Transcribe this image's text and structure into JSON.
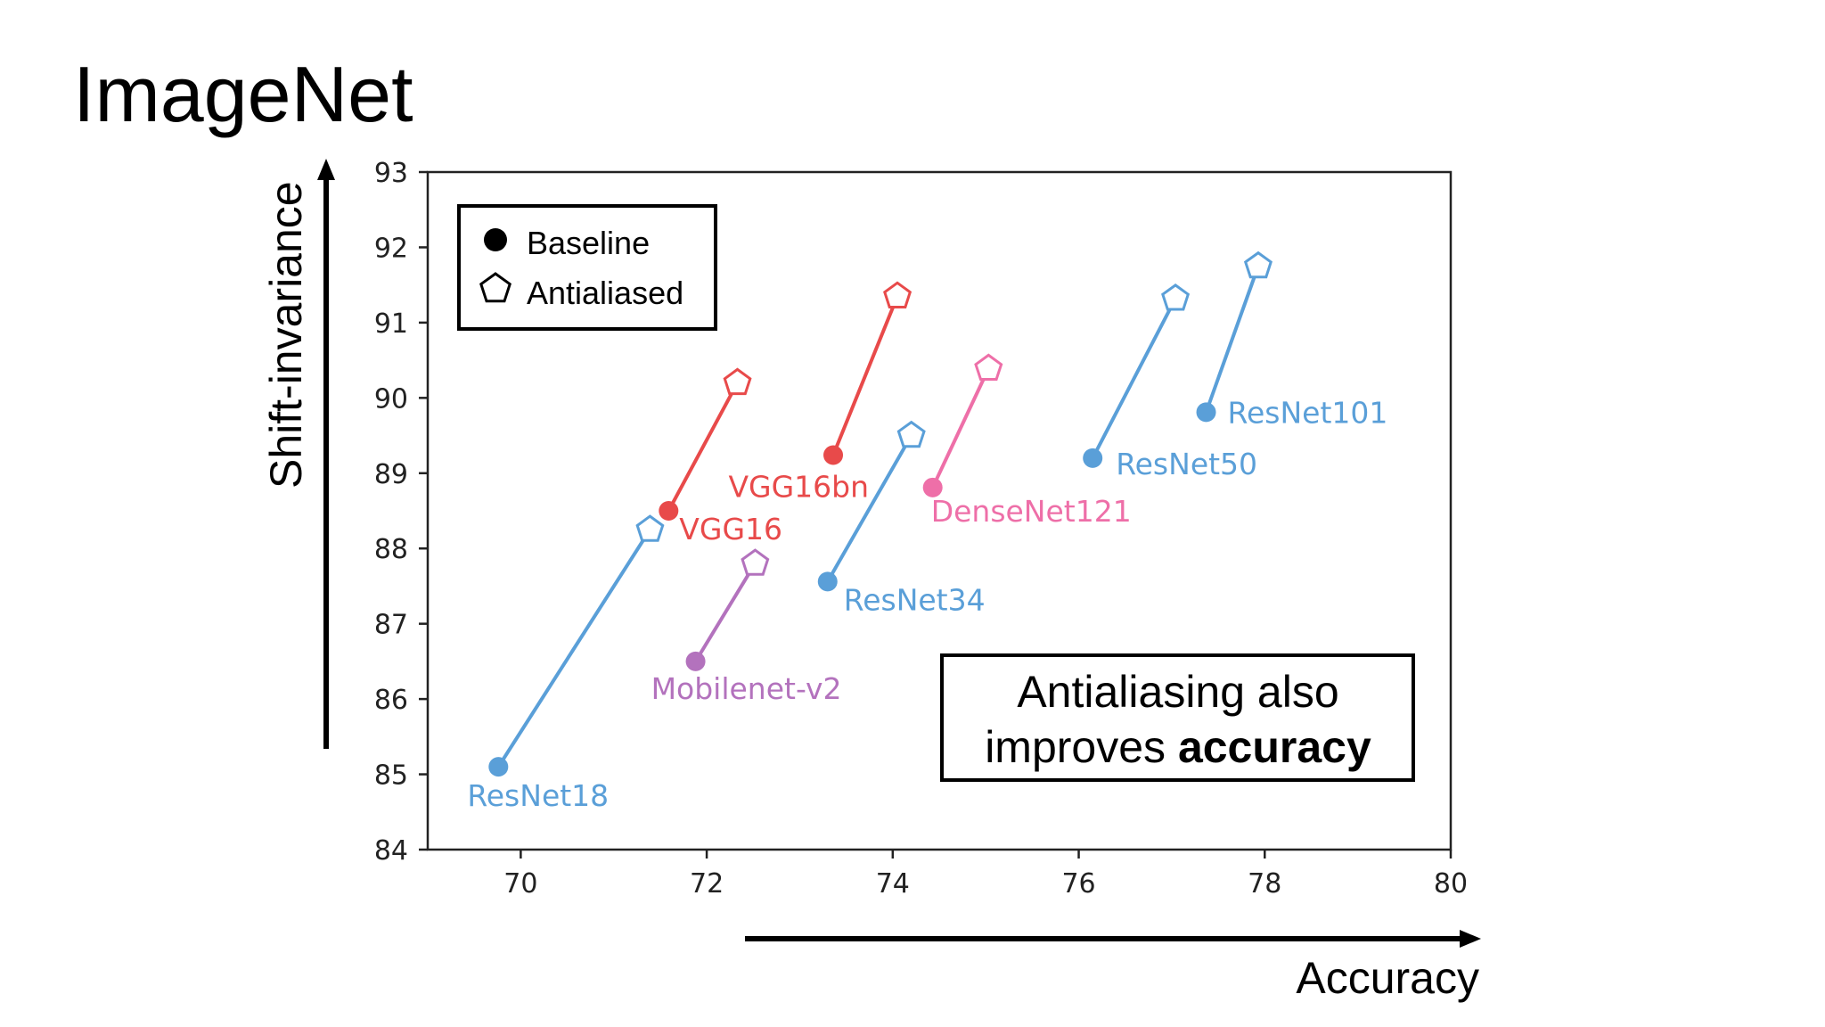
{
  "slide": {
    "title": "ImageNet",
    "note_line1": "Antialiasing also",
    "note_line2_prefix": "improves ",
    "note_line2_bold": "accuracy"
  },
  "chart_data": {
    "type": "scatter",
    "title": "",
    "xlabel": "Accuracy",
    "ylabel": "Shift-invariance",
    "xlim": [
      69,
      80
    ],
    "ylim": [
      84,
      93
    ],
    "xticks": [
      70,
      72,
      74,
      76,
      78,
      80
    ],
    "yticks": [
      84,
      85,
      86,
      87,
      88,
      89,
      90,
      91,
      92,
      93
    ],
    "grid": false,
    "legend": {
      "placement": "top-left",
      "entries": [
        {
          "label": "Baseline",
          "marker": "circle"
        },
        {
          "label": "Antialiased",
          "marker": "pentagon"
        }
      ]
    },
    "series": [
      {
        "name": "ResNet18",
        "color": "#5a9fd8",
        "baseline": {
          "x": 69.76,
          "y": 85.1
        },
        "antialiased": {
          "x": 71.39,
          "y": 88.25
        }
      },
      {
        "name": "VGG16",
        "color": "#e84a4a",
        "baseline": {
          "x": 71.59,
          "y": 88.5
        },
        "antialiased": {
          "x": 72.33,
          "y": 90.2
        }
      },
      {
        "name": "VGG16bn",
        "color": "#e84a4a",
        "baseline": {
          "x": 73.36,
          "y": 89.24
        },
        "antialiased": {
          "x": 74.05,
          "y": 91.35
        }
      },
      {
        "name": "Mobilenet-v2",
        "color": "#b372bd",
        "baseline": {
          "x": 71.88,
          "y": 86.5
        },
        "antialiased": {
          "x": 72.52,
          "y": 87.8
        }
      },
      {
        "name": "ResNet34",
        "color": "#5a9fd8",
        "baseline": {
          "x": 73.3,
          "y": 87.56
        },
        "antialiased": {
          "x": 74.2,
          "y": 89.5
        }
      },
      {
        "name": "DenseNet121",
        "color": "#ee6fa8",
        "baseline": {
          "x": 74.43,
          "y": 88.81
        },
        "antialiased": {
          "x": 75.03,
          "y": 90.39
        }
      },
      {
        "name": "ResNet50",
        "color": "#5a9fd8",
        "baseline": {
          "x": 76.15,
          "y": 89.2
        },
        "antialiased": {
          "x": 77.04,
          "y": 91.32
        }
      },
      {
        "name": "ResNet101",
        "color": "#5a9fd8",
        "baseline": {
          "x": 77.37,
          "y": 89.81
        },
        "antialiased": {
          "x": 77.93,
          "y": 91.75
        }
      }
    ]
  }
}
